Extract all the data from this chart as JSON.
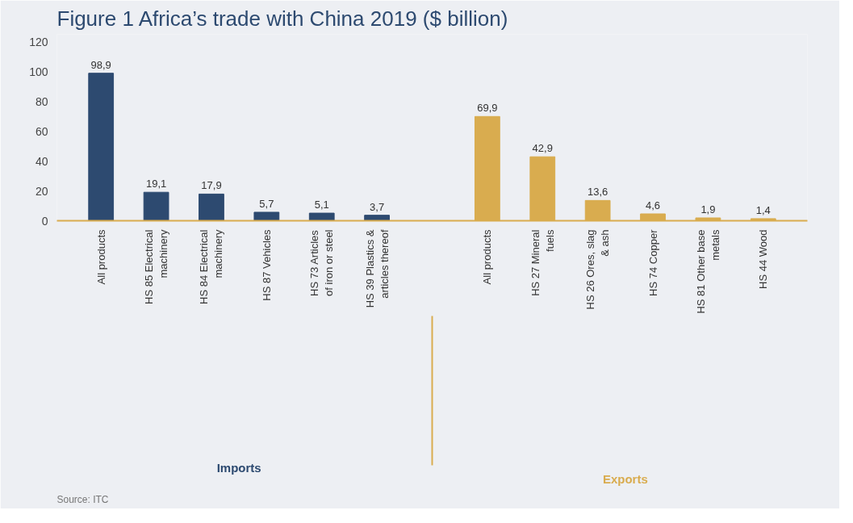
{
  "chart_data": {
    "type": "bar",
    "title": "Figure 1     Africa’s trade with China 2019 ($ billion)",
    "categories": [
      "All products",
      "HS 85 Electrical machinery",
      "HS 84 Electrical machinery",
      "HS 87 Vehicles",
      "HS 73 Articles of iron or steel",
      "HS 39 Plastics & articles thereof",
      null,
      "All products",
      "HS 27 Mineral fuels",
      "HS 26 Ores, slag & ash",
      "HS 74 Copper",
      "HS 81 Other base metals",
      "HS 44 Wood"
    ],
    "series": [
      {
        "name": "Imports",
        "color": "#2d4a70",
        "values": [
          98.9,
          19.1,
          17.9,
          5.7,
          5.1,
          3.7,
          null,
          null,
          null,
          null,
          null,
          null,
          null
        ],
        "value_labels": [
          "98,9",
          "19,1",
          "17,9",
          "5,7",
          "5,1",
          "3,7",
          null,
          null,
          null,
          null,
          null,
          null,
          null
        ]
      },
      {
        "name": "Exports",
        "color": "#d9ac4f",
        "values": [
          null,
          null,
          null,
          null,
          null,
          null,
          null,
          69.9,
          42.9,
          13.6,
          4.6,
          1.9,
          1.4
        ],
        "value_labels": [
          null,
          null,
          null,
          null,
          null,
          null,
          null,
          "69,9",
          "42,9",
          "13,6",
          "4,6",
          "1,9",
          "1,4"
        ]
      }
    ],
    "ylim": [
      0,
      125
    ],
    "yticks": [
      0,
      20,
      40,
      60,
      80,
      100,
      120
    ],
    "grid": false,
    "annotations": [
      "Source: ITC"
    ]
  }
}
